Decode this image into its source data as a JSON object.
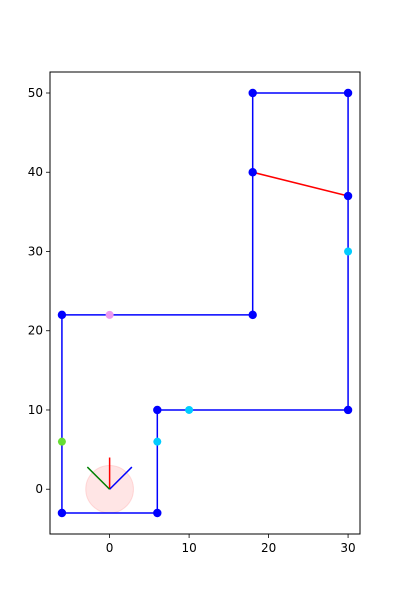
{
  "chart_data": {
    "type": "line",
    "title": "",
    "xlabel": "",
    "ylabel": "",
    "xlim": [
      -7.5,
      31.5
    ],
    "ylim": [
      -5.65,
      52.65
    ],
    "xticks": [
      0,
      10,
      20,
      30
    ],
    "yticks": [
      0,
      10,
      20,
      30,
      40,
      50
    ],
    "xtick_labels": [
      "0",
      "10",
      "20",
      "30"
    ],
    "ytick_labels": [
      "0",
      "10",
      "20",
      "30",
      "40",
      "50"
    ],
    "grid": false,
    "legend": "none",
    "series": [
      {
        "color": "#0000ff",
        "x": [
          -6,
          6,
          6,
          30,
          30,
          18,
          18,
          -6,
          -6
        ],
        "y": [
          -3,
          -3,
          10,
          10,
          50,
          50,
          22,
          22,
          -3
        ],
        "closed": false
      },
      {
        "color": "#ff0000",
        "x": [
          18,
          30
        ],
        "y": [
          40,
          37
        ]
      }
    ],
    "vertices": {
      "color": "#0000ff",
      "x": [
        -6,
        6,
        6,
        30,
        30,
        30,
        18,
        18,
        18,
        -6
      ],
      "y": [
        -3,
        -3,
        10,
        10,
        37,
        50,
        50,
        40,
        22,
        22
      ]
    },
    "extra_points": [
      {
        "x": 6,
        "y": 6,
        "color": "#00ccff"
      },
      {
        "x": 10,
        "y": 10,
        "color": "#00ccff"
      },
      {
        "x": 30,
        "y": 30,
        "color": "#00ccff"
      },
      {
        "x": -6,
        "y": 6,
        "color": "#66dd33"
      },
      {
        "x": 0,
        "y": 22,
        "color": "#ee99ee"
      }
    ],
    "robot": {
      "center": [
        0,
        0
      ],
      "radius": 3,
      "fill": "#ffcccc",
      "opacity": 0.5,
      "arrows": [
        {
          "to": [
            0,
            4
          ],
          "color": "#ff0000"
        },
        {
          "to": [
            2.8,
            2.8
          ],
          "color": "#0000ff"
        },
        {
          "to": [
            -2.8,
            2.8
          ],
          "color": "#008000"
        }
      ]
    }
  }
}
